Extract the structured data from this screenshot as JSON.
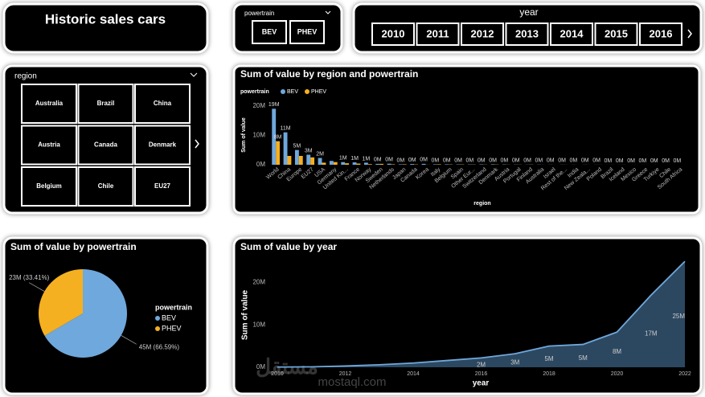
{
  "title": "Historic sales cars",
  "powertrain_slicer": {
    "label": "powertrain",
    "options": [
      "BEV",
      "PHEV"
    ]
  },
  "year_slicer": {
    "label": "year",
    "options": [
      "2010",
      "2011",
      "2012",
      "2013",
      "2014",
      "2015",
      "2016"
    ]
  },
  "region_slicer": {
    "label": "region",
    "options": [
      "Australia",
      "Brazil",
      "China",
      "Austria",
      "Canada",
      "Denmark",
      "Belgium",
      "Chile",
      "EU27"
    ]
  },
  "watermark": {
    "logo": "مستقل",
    "text": "mostaql.com"
  },
  "chart_data": [
    {
      "type": "bar",
      "title": "Sum of value by region and powertrain",
      "legend_title": "powertrain",
      "y_label": "Sum of value",
      "x_label": "region",
      "categories": [
        "World",
        "China",
        "Europe",
        "EU27",
        "USA",
        "Germany",
        "United Kin...",
        "France",
        "Norway",
        "Sweden",
        "Netherlands",
        "Japan",
        "Canada",
        "Korea",
        "Italy",
        "Belgium",
        "Spain",
        "Other Eur...",
        "Switzerland",
        "Denmark",
        "Austria",
        "Portugal",
        "Finland",
        "Australia",
        "Israel",
        "Rest of the...",
        "India",
        "New Zeala...",
        "Poland",
        "Brazil",
        "Iceland",
        "Mexico",
        "Greece",
        "Turkiye",
        "Chile",
        "South Africa"
      ],
      "series": [
        {
          "name": "BEV",
          "color": "#6fa8dc",
          "values": [
            19000000,
            11000000,
            5000000,
            3400000,
            2300000,
            1300000,
            900000,
            800000,
            700000,
            300000,
            350000,
            150000,
            250000,
            300000,
            150000,
            150000,
            120000,
            100000,
            120000,
            150000,
            100000,
            70000,
            50000,
            60000,
            40000,
            40000,
            30000,
            40000,
            30000,
            10000,
            20000,
            5000,
            10000,
            10000,
            2000,
            1000
          ],
          "value_labels": [
            "19M",
            "11M",
            "5M",
            "3M",
            "2M",
            null,
            "1M",
            "1M",
            "1M",
            "0M",
            "0M",
            "0M",
            "0M",
            "0M",
            "0M",
            "0M",
            "0M",
            "0M",
            "0M",
            "0M",
            "0M",
            "0M",
            "0M",
            "0M",
            "0M",
            "0M",
            "0M",
            "0M",
            "0M",
            "0M",
            "0M",
            "0M",
            "0M",
            "0M",
            "0M",
            "0M"
          ]
        },
        {
          "name": "PHEV",
          "color": "#f5b021",
          "values": [
            8000000,
            3000000,
            3000000,
            2500000,
            700000,
            900000,
            500000,
            400000,
            200000,
            300000,
            150000,
            150000,
            100000,
            30000,
            150000,
            100000,
            100000,
            80000,
            60000,
            80000,
            40000,
            50000,
            70000,
            20000,
            10000,
            20000,
            5000,
            10000,
            20000,
            20000,
            20000,
            10000,
            10000,
            5000,
            2000,
            1000
          ],
          "value_labels": [
            "8M",
            null,
            null,
            null,
            null,
            null,
            null,
            null,
            null,
            null,
            null,
            null,
            null,
            null,
            null,
            null,
            null,
            null,
            null,
            null,
            null,
            null,
            null,
            null,
            null,
            null,
            null,
            null,
            null,
            null,
            null,
            null,
            null,
            null,
            null,
            null
          ]
        }
      ],
      "ylim": [
        0,
        21000000
      ],
      "yticks": [
        {
          "value": 0,
          "label": "0M"
        },
        {
          "value": 10000000,
          "label": "10M"
        },
        {
          "value": 20000000,
          "label": "20M"
        }
      ]
    },
    {
      "type": "pie",
      "title": "Sum of value by powertrain",
      "legend_title": "powertrain",
      "categories": [
        "BEV",
        "PHEV"
      ],
      "colors": [
        "#6fa8dc",
        "#f5b021"
      ],
      "values": [
        45400000,
        22780000
      ],
      "value_labels": [
        "45M (66.59%)",
        "23M (33.41%)"
      ]
    },
    {
      "type": "area",
      "title": "Sum of value by year",
      "y_label": "Sum of value",
      "x_label": "year",
      "color": "#6fa8dc",
      "fill": "#2c4861",
      "x": [
        2010,
        2011,
        2012,
        2013,
        2014,
        2015,
        2016,
        2017,
        2018,
        2019,
        2020,
        2021,
        2022
      ],
      "values": [
        50000,
        100000,
        300000,
        600000,
        1000000,
        1600000,
        2200000,
        3200000,
        5000000,
        5400000,
        8300000,
        17000000,
        25000000
      ],
      "value_labels": [
        null,
        null,
        null,
        null,
        null,
        null,
        "2M",
        "3M",
        "5M",
        "5M",
        "8M",
        "17M",
        "25M"
      ],
      "xlim": [
        2010,
        2022
      ],
      "xticks": [
        2010,
        2012,
        2014,
        2016,
        2018,
        2020,
        2022
      ],
      "ylim": [
        0,
        26000000
      ],
      "yticks": [
        {
          "value": 0,
          "label": "0M"
        },
        {
          "value": 10000000,
          "label": "10M"
        },
        {
          "value": 20000000,
          "label": "20M"
        }
      ]
    }
  ]
}
